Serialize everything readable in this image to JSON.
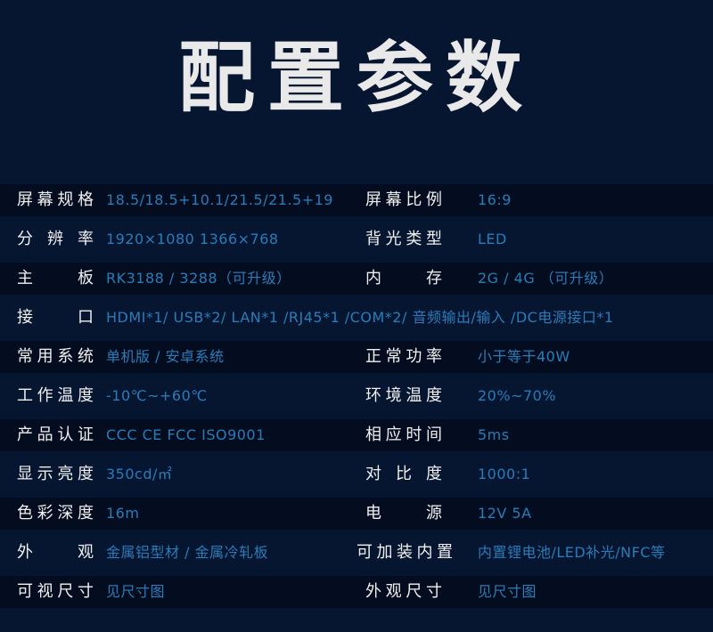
{
  "title": "配置参数",
  "colors": {
    "background": "#061530",
    "stripe": "#040d1f",
    "label": "#f0f0f0",
    "value": "#2a7cb8"
  },
  "rows": [
    {
      "l1": "屏幕规格",
      "v1": "18.5/18.5+10.1/21.5/21.5+19",
      "l2": "屏幕比例",
      "v2": "16:9"
    },
    {
      "l1": "分辨率",
      "v1": "1920×1080   1366×768",
      "l2": "背光类型",
      "v2": "LED"
    },
    {
      "l1": "主板",
      "v1": "RK3188 / 3288（可升级）",
      "l2": "内存",
      "v2": "2G / 4G （可升级）"
    },
    {
      "l1": "接口",
      "v1": "HDMI*1/ USB*2/ LAN*1 /RJ45*1 /COM*2/ 音频输出/输入 /DC电源接口*1"
    },
    {
      "l1": "常用系统",
      "v1": "单机版 / 安卓系统",
      "l2": "正常功率",
      "v2": "小于等于40W"
    },
    {
      "l1": "工作温度",
      "v1": "-10℃~+60℃",
      "l2": "环境温度",
      "v2": "20%~70%"
    },
    {
      "l1": "产品认证",
      "v1": "CCC CE  FCC  ISO9001",
      "l2": "相应时间",
      "v2": "5ms"
    },
    {
      "l1": "显示亮度",
      "v1": "350cd/㎡",
      "l2": "对比度",
      "v2": "1000:1"
    },
    {
      "l1": "色彩深度",
      "v1": "16m",
      "l2": "电源",
      "v2": "12V 5A"
    },
    {
      "l1": "外观",
      "v1": "金属铝型材 / 金属冷轧板",
      "l2": "可加装内置",
      "v2": "内置锂电池/LED补光/NFC等"
    },
    {
      "l1": "可视尺寸",
      "v1": "见尺寸图",
      "l2": "外观尺寸",
      "v2": "见尺寸图"
    }
  ]
}
